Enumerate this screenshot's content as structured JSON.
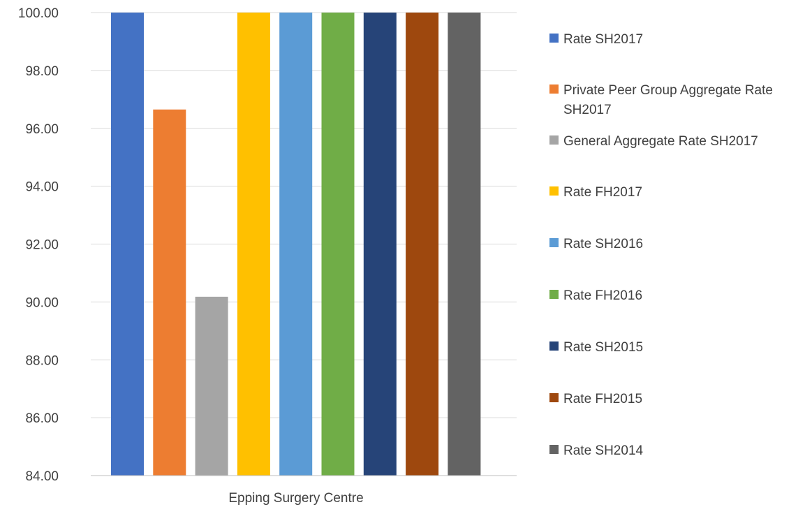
{
  "chart_data": {
    "type": "bar",
    "title": "",
    "xlabel": "",
    "ylabel": "",
    "categories": [
      "Epping Surgery Centre"
    ],
    "ylim": [
      84,
      100
    ],
    "yticks": [
      "100.00",
      "98.00",
      "96.00",
      "94.00",
      "92.00",
      "90.00",
      "88.00",
      "86.00",
      "84.00"
    ],
    "grid": true,
    "legend_position": "right",
    "series": [
      {
        "name": "Rate SH2017",
        "values": [
          100.0
        ],
        "color": "#4472C4"
      },
      {
        "name": "Private Peer Group Aggregate Rate SH2017",
        "values": [
          96.65
        ],
        "color": "#ED7D31"
      },
      {
        "name": "General Aggregate Rate SH2017",
        "values": [
          90.18
        ],
        "color": "#A5A5A5"
      },
      {
        "name": "Rate FH2017",
        "values": [
          100.0
        ],
        "color": "#FFC000"
      },
      {
        "name": "Rate SH2016",
        "values": [
          100.0
        ],
        "color": "#5B9BD5"
      },
      {
        "name": "Rate FH2016",
        "values": [
          100.0
        ],
        "color": "#70AD47"
      },
      {
        "name": "Rate SH2015",
        "values": [
          100.0
        ],
        "color": "#264478"
      },
      {
        "name": "Rate FH2015",
        "values": [
          100.0
        ],
        "color": "#9E480E"
      },
      {
        "name": "Rate SH2014",
        "values": [
          100.0
        ],
        "color": "#636363"
      }
    ]
  }
}
